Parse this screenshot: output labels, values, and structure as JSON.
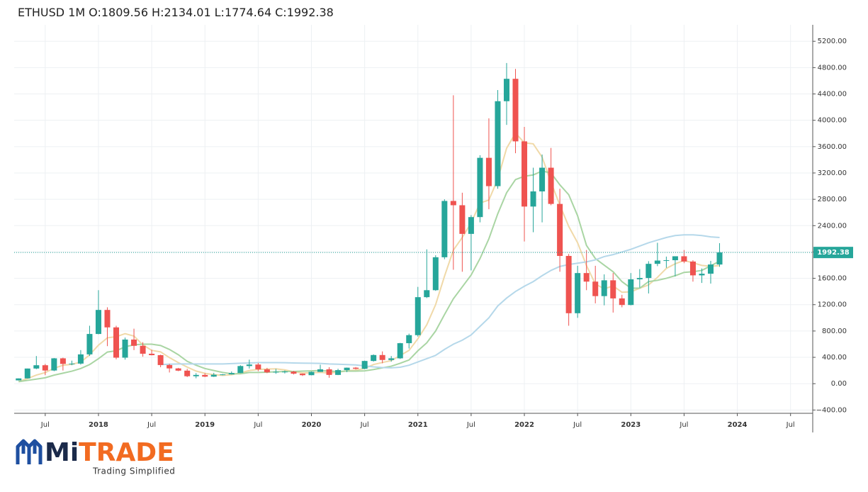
{
  "chart_data": {
    "type": "candlestick",
    "symbol": "ETHUSD 1M",
    "ohlc_labels": [
      "O:",
      "H:",
      "L:",
      "C:"
    ],
    "up_color": "#26a69a",
    "down_color": "#ef5350",
    "x": [
      "2017-04",
      "2017-05",
      "2017-06",
      "2017-07",
      "2017-08",
      "2017-09",
      "2017-10",
      "2017-11",
      "2017-12",
      "2018-01",
      "2018-02",
      "2018-03",
      "2018-04",
      "2018-05",
      "2018-06",
      "2018-07",
      "2018-08",
      "2018-09",
      "2018-10",
      "2018-11",
      "2018-12",
      "2019-01",
      "2019-02",
      "2019-03",
      "2019-04",
      "2019-05",
      "2019-06",
      "2019-07",
      "2019-08",
      "2019-09",
      "2019-10",
      "2019-11",
      "2019-12",
      "2020-01",
      "2020-02",
      "2020-03",
      "2020-04",
      "2020-05",
      "2020-06",
      "2020-07",
      "2020-08",
      "2020-09",
      "2020-10",
      "2020-11",
      "2020-12",
      "2021-01",
      "2021-02",
      "2021-03",
      "2021-04",
      "2021-05",
      "2021-06",
      "2021-07",
      "2021-08",
      "2021-09",
      "2021-10",
      "2021-11",
      "2021-12",
      "2022-01",
      "2022-02",
      "2022-03",
      "2022-04",
      "2022-05",
      "2022-06",
      "2022-07",
      "2022-08",
      "2022-09",
      "2022-10",
      "2022-11",
      "2022-12",
      "2023-01",
      "2023-02",
      "2023-03",
      "2023-04",
      "2023-05",
      "2023-06",
      "2023-07",
      "2023-08",
      "2023-09",
      "2023-10",
      "2023-11"
    ],
    "candles": {
      "open": [
        50,
        80,
        230,
        280,
        200,
        385,
        300,
        305,
        445,
        755,
        1120,
        855,
        395,
        670,
        575,
        455,
        433,
        283,
        232,
        198,
        113,
        133,
        107,
        136,
        141,
        162,
        268,
        291,
        218,
        172,
        180,
        183,
        152,
        129,
        179,
        218,
        133,
        206,
        243,
        226,
        345,
        435,
        360,
        385,
        615,
        737,
        1314,
        1420,
        1920,
        2775,
        2710,
        2275,
        2530,
        3430,
        3000,
        4290,
        4630,
        3680,
        2690,
        2920,
        3280,
        2730,
        1940,
        1070,
        1680,
        1550,
        1330,
        1570,
        1295,
        1195,
        1585,
        1605,
        1820,
        1870,
        1875,
        1935,
        1855,
        1645,
        1670,
        1809.56
      ],
      "high": [
        80,
        230,
        420,
        300,
        390,
        395,
        350,
        510,
        880,
        1420,
        1160,
        880,
        700,
        835,
        630,
        515,
        440,
        300,
        240,
        225,
        160,
        160,
        165,
        146,
        185,
        280,
        365,
        315,
        240,
        225,
        200,
        195,
        155,
        185,
        288,
        250,
        227,
        245,
        253,
        350,
        445,
        490,
        420,
        620,
        760,
        1470,
        2040,
        1950,
        2800,
        4380,
        2900,
        2560,
        3470,
        4030,
        4460,
        4870,
        4780,
        3900,
        3280,
        3480,
        3580,
        2960,
        1970,
        1790,
        2030,
        1790,
        1660,
        1680,
        1350,
        1680,
        1740,
        1860,
        2140,
        1930,
        1930,
        2030,
        1875,
        1750,
        1865,
        2134.01
      ],
      "low": [
        48,
        80,
        220,
        130,
        190,
        200,
        280,
        290,
        420,
        750,
        570,
        370,
        365,
        510,
        410,
        430,
        250,
        170,
        190,
        100,
        82,
        100,
        102,
        128,
        140,
        160,
        230,
        190,
        160,
        150,
        155,
        140,
        117,
        127,
        179,
        90,
        130,
        175,
        215,
        220,
        335,
        310,
        335,
        375,
        535,
        715,
        1300,
        1410,
        1890,
        1730,
        1700,
        1720,
        2450,
        2650,
        2960,
        3930,
        3500,
        2160,
        2300,
        2450,
        2710,
        1700,
        880,
        1000,
        1420,
        1220,
        1190,
        1080,
        1160,
        1190,
        1460,
        1370,
        1785,
        1760,
        1630,
        1830,
        1550,
        1530,
        1520,
        1774.64
      ],
      "close": [
        80,
        230,
        280,
        200,
        385,
        300,
        305,
        445,
        755,
        1120,
        855,
        395,
        670,
        575,
        455,
        433,
        283,
        232,
        198,
        113,
        133,
        107,
        136,
        141,
        162,
        268,
        291,
        218,
        172,
        180,
        183,
        152,
        129,
        179,
        218,
        133,
        206,
        243,
        226,
        345,
        435,
        360,
        385,
        615,
        737,
        1314,
        1420,
        1920,
        2775,
        2710,
        2275,
        2530,
        3430,
        3000,
        4290,
        4630,
        3680,
        2690,
        2920,
        3280,
        2730,
        1940,
        1070,
        1680,
        1550,
        1330,
        1570,
        1295,
        1195,
        1585,
        1605,
        1820,
        1870,
        1875,
        1935,
        1855,
        1645,
        1670,
        1810,
        1992.38
      ]
    },
    "overlays": [
      {
        "color": "#f0d9a8",
        "values": [
          33,
          77,
          131,
          168,
          235,
          279,
          294,
          327,
          438,
          585,
          696,
          714,
          759,
          723,
          590,
          506,
          483,
          396,
          320,
          252,
          192,
          157,
          137,
          126,
          136,
          163,
          200,
          216,
          222,
          226,
          209,
          181,
          163,
          165,
          172,
          162,
          173,
          196,
          205,
          231,
          291,
          322,
          350,
          428,
          506,
          682,
          894,
          1201,
          1633,
          2028,
          2220,
          2442,
          2744,
          2789,
          3105,
          3576,
          3806,
          3658,
          3642,
          3440,
          3060,
          2712,
          2388,
          2140,
          1794,
          1514,
          1440,
          1485,
          1388,
          1395,
          1450,
          1500,
          1615,
          1751,
          1821,
          1871,
          1836,
          1796,
          1783,
          1794
        ]
      },
      {
        "color": "#a9d5a3",
        "values": [
          30,
          50,
          70,
          90,
          130,
          160,
          190,
          230,
          290,
          380,
          480,
          500,
          560,
          590,
          600,
          600,
          580,
          520,
          440,
          340,
          280,
          230,
          200,
          170,
          150,
          150,
          170,
          170,
          175,
          180,
          185,
          185,
          190,
          195,
          200,
          190,
          185,
          190,
          190,
          195,
          215,
          240,
          265,
          310,
          360,
          500,
          620,
          800,
          1050,
          1290,
          1470,
          1650,
          1900,
          2200,
          2580,
          2900,
          3100,
          3150,
          3170,
          3230,
          3200,
          3020,
          2870,
          2550,
          2100,
          1900,
          1800,
          1700,
          1550,
          1450,
          1450,
          1550,
          1570,
          1600,
          1640,
          1690,
          1700,
          1720,
          1790,
          1860
        ]
      },
      {
        "color": "#b5d8ea",
        "values": [
          null,
          null,
          null,
          null,
          null,
          null,
          null,
          null,
          null,
          null,
          null,
          null,
          null,
          null,
          null,
          null,
          290,
          295,
          300,
          300,
          300,
          300,
          300,
          300,
          305,
          310,
          315,
          320,
          320,
          320,
          318,
          315,
          312,
          310,
          308,
          300,
          295,
          290,
          285,
          270,
          255,
          245,
          240,
          250,
          280,
          330,
          380,
          430,
          520,
          600,
          660,
          740,
          870,
          1000,
          1180,
          1300,
          1400,
          1480,
          1550,
          1640,
          1720,
          1780,
          1810,
          1830,
          1850,
          1880,
          1930,
          1960,
          2000,
          2040,
          2090,
          2140,
          2180,
          2220,
          2250,
          2260,
          2260,
          2250,
          2230,
          2220
        ]
      }
    ],
    "price_line_color": "#26a69a",
    "xlim": [
      "2017-04",
      "2024-09"
    ],
    "xticks": [
      {
        "value": "2017-07",
        "label": "Jul"
      },
      {
        "value": "2018-01",
        "label": "2018"
      },
      {
        "value": "2018-07",
        "label": "Jul"
      },
      {
        "value": "2019-01",
        "label": "2019"
      },
      {
        "value": "2019-07",
        "label": "Jul"
      },
      {
        "value": "2020-01",
        "label": "2020"
      },
      {
        "value": "2020-07",
        "label": "Jul"
      },
      {
        "value": "2021-01",
        "label": "2021"
      },
      {
        "value": "2021-07",
        "label": "Jul"
      },
      {
        "value": "2022-01",
        "label": "2022"
      },
      {
        "value": "2022-07",
        "label": "Jul"
      },
      {
        "value": "2023-01",
        "label": "2023"
      },
      {
        "value": "2023-07",
        "label": "Jul"
      },
      {
        "value": "2024-01",
        "label": "2024"
      },
      {
        "value": "2024-07",
        "label": "Jul"
      }
    ],
    "ylim": [
      -450,
      5450
    ],
    "yticks": [
      {
        "value": -400,
        "label": "−400.00"
      },
      {
        "value": 0,
        "label": "0.00"
      },
      {
        "value": 400,
        "label": "400.00"
      },
      {
        "value": 800,
        "label": "800.00"
      },
      {
        "value": 1200,
        "label": "1200.00"
      },
      {
        "value": 1600,
        "label": "1600.00"
      },
      {
        "value": 2000,
        "label": "2000.00"
      },
      {
        "value": 2400,
        "label": "2400.00"
      },
      {
        "value": 2800,
        "label": "2800.00"
      },
      {
        "value": 3200,
        "label": "3200.00"
      },
      {
        "value": 3600,
        "label": "3600.00"
      },
      {
        "value": 4000,
        "label": "4000.00"
      },
      {
        "value": 4400,
        "label": "4400.00"
      },
      {
        "value": 4800,
        "label": "4800.00"
      },
      {
        "value": 5200,
        "label": "5200.00"
      }
    ],
    "grid": true
  },
  "logo": {
    "brand_start": "Mi",
    "brand_end": "TRADE",
    "tagline": "Trading Simplified"
  }
}
